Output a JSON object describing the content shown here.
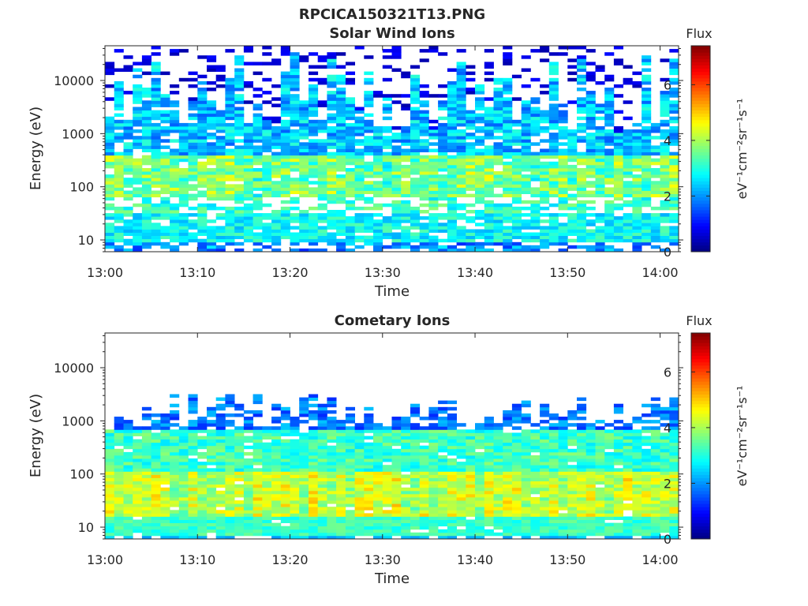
{
  "figure": {
    "title": "RPCICA150321T13.PNG"
  },
  "chart_data": [
    {
      "type": "heatmap",
      "title": "Solar Wind Ions",
      "xlabel": "Time",
      "ylabel": "Energy (eV)",
      "x_range": [
        "13:00",
        "14:02"
      ],
      "y_range": [
        6,
        45000
      ],
      "y_scale": "log",
      "x_ticks": [
        "13:00",
        "13:10",
        "13:20",
        "13:30",
        "13:40",
        "13:50",
        "14:00"
      ],
      "y_ticks": [
        "10",
        "100",
        "1000",
        "10000"
      ],
      "colorbar": {
        "label": "eV⁻¹cm⁻²sr⁻¹s⁻¹",
        "header": "Flux",
        "range": [
          0,
          7.4
        ],
        "ticks": [
          "0",
          "2",
          "4",
          "6"
        ],
        "colormap": "jet"
      },
      "profile": {
        "low_band_eV": [
          10,
          30
        ],
        "peak_band_eV": [
          60,
          400
        ],
        "upper_cutoff_eV": [
          1000,
          45000
        ],
        "typical_peak_flux": 3.6
      }
    },
    {
      "type": "heatmap",
      "title": "Cometary Ions",
      "xlabel": "Time",
      "ylabel": "Energy (eV)",
      "x_range": [
        "13:00",
        "14:02"
      ],
      "y_range": [
        6,
        45000
      ],
      "y_scale": "log",
      "x_ticks": [
        "13:00",
        "13:10",
        "13:20",
        "13:30",
        "13:40",
        "13:50",
        "14:00"
      ],
      "y_ticks": [
        "10",
        "100",
        "1000",
        "10000"
      ],
      "colorbar": {
        "label": "eV⁻¹cm⁻²sr⁻¹s⁻¹",
        "header": "Flux",
        "range": [
          0,
          7.4
        ],
        "ticks": [
          "0",
          "2",
          "4",
          "6"
        ],
        "colormap": "jet"
      },
      "profile": {
        "peak_band_eV": [
          20,
          120
        ],
        "upper_cutoff_eV": [
          800,
          3500
        ],
        "typical_peak_flux": 4.8
      }
    }
  ]
}
